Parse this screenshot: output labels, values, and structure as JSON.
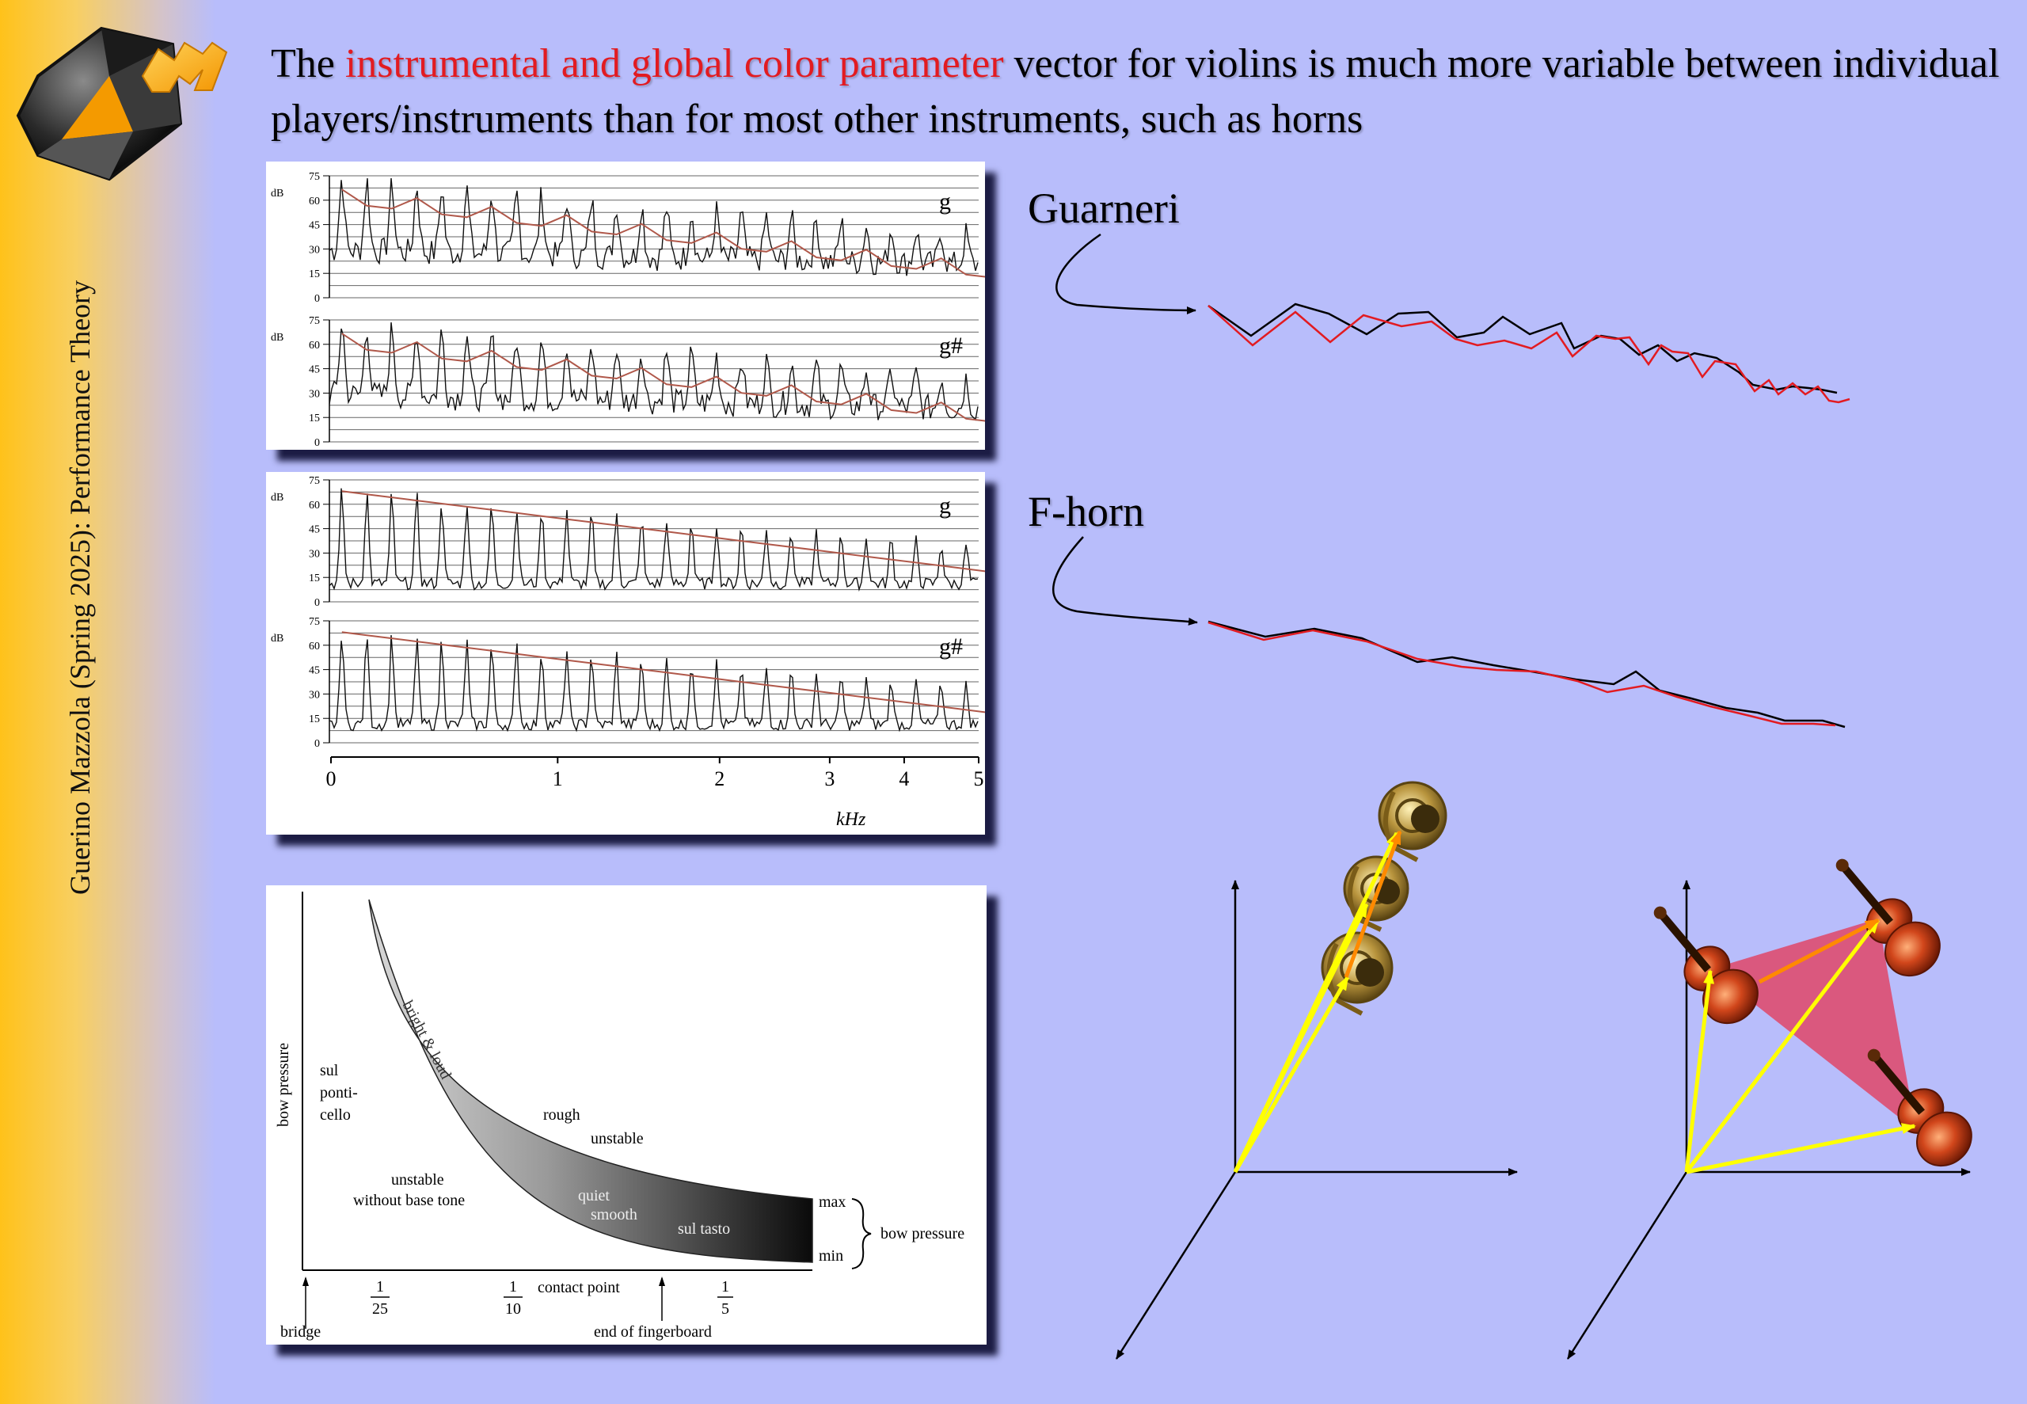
{
  "sidebar": {
    "text": "Guerino Mazzola (Spring 2025): Performance Theory"
  },
  "title": {
    "before": "The ",
    "highlight": "instrumental and global color parameter",
    "after": " vector for violins is much more variable between individual players/instruments than for most other instruments, such as horns"
  },
  "spectra": {
    "y_unit": "dB",
    "y_ticks": [
      "75",
      "60",
      "45",
      "30",
      "15",
      "0"
    ],
    "violin_notes": [
      "g",
      "g#"
    ],
    "horn_notes": [
      "g",
      "g#"
    ],
    "x_ticks": [
      "0",
      "1",
      "2",
      "3",
      "4",
      "5"
    ],
    "x_unit": "kHz"
  },
  "labels": {
    "guarneri": "Guarneri",
    "fhorn": "F-horn"
  },
  "bow_diagram": {
    "y_axis": "bow pressure",
    "band_label": "bright & loud",
    "region_sul_ponticello": [
      "sul",
      "ponti-",
      "cello"
    ],
    "region_rough": "rough",
    "region_unstable": "unstable",
    "region_unstable_no_base": [
      "unstable",
      "without base tone"
    ],
    "region_quiet": "quiet",
    "region_smooth": "smooth",
    "region_sul_tasto": "sul tasto",
    "max": "max",
    "min": "min",
    "brace_label": "bow pressure",
    "x_axis": "contact point",
    "fractions": [
      {
        "num": "1",
        "den": "25"
      },
      {
        "num": "1",
        "den": "10"
      },
      {
        "num": "1",
        "den": "5"
      }
    ],
    "bridge": "bridge",
    "fingerboard": "end of fingerboard"
  },
  "colors": {
    "background": "#b8bdfb",
    "highlight": "#e21b21",
    "envelope": "#b0584a",
    "arrow": "#ffff00",
    "triangle": "#e8304d"
  }
}
